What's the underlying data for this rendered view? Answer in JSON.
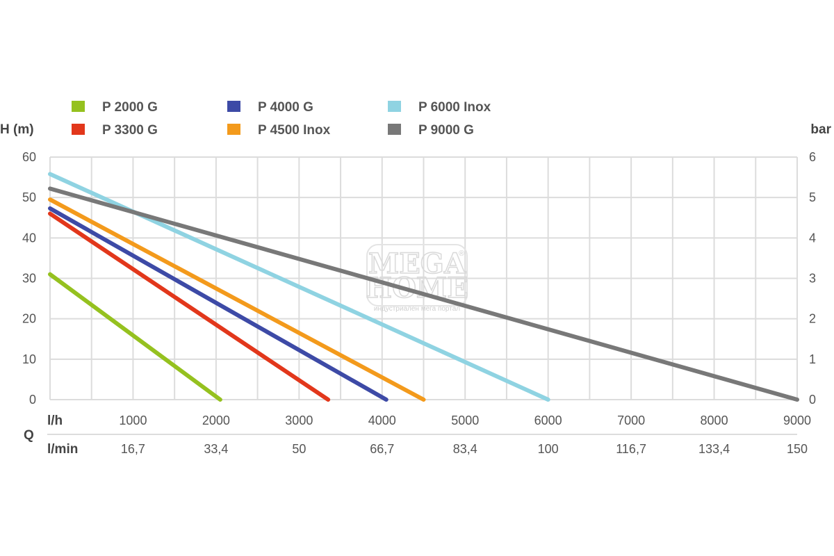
{
  "chart_data": {
    "type": "line",
    "xlim": [
      0,
      9000
    ],
    "ylim": [
      0,
      60
    ],
    "y2lim": [
      0,
      6
    ],
    "ylabel": "H (m)",
    "y2label": "bar",
    "q_label": "Q",
    "x_unit_label": "l/h",
    "x2_unit_label": "l/min",
    "y_ticks": [
      "0",
      "10",
      "20",
      "30",
      "40",
      "50",
      "60"
    ],
    "y2_ticks": [
      "0",
      "1",
      "2",
      "3",
      "4",
      "5",
      "6"
    ],
    "x_ticks": [
      "1000",
      "2000",
      "3000",
      "4000",
      "5000",
      "6000",
      "7000",
      "8000",
      "9000"
    ],
    "x2_ticks": [
      "16,7",
      "33,4",
      "50",
      "66,7",
      "83,4",
      "100",
      "116,7",
      "133,4",
      "150"
    ],
    "grid": true,
    "legend_position": "top",
    "series": [
      {
        "name": "P 2000 G",
        "color": "#95c11f",
        "x": [
          0,
          2050
        ],
        "y": [
          31,
          0
        ]
      },
      {
        "name": "P 3300 G",
        "color": "#e2371b",
        "x": [
          0,
          3350
        ],
        "y": [
          46,
          0
        ]
      },
      {
        "name": "P 4000 G",
        "color": "#3d4aa6",
        "x": [
          0,
          4050
        ],
        "y": [
          47.3,
          0
        ]
      },
      {
        "name": "P 4500 Inox",
        "color": "#f39a1c",
        "x": [
          0,
          4500
        ],
        "y": [
          49.5,
          0
        ]
      },
      {
        "name": "P 6000 Inox",
        "color": "#8fd3e2",
        "x": [
          0,
          6000
        ],
        "y": [
          55.8,
          0
        ]
      },
      {
        "name": "P 9000 G",
        "color": "#787878",
        "x": [
          0,
          9000
        ],
        "y": [
          52.2,
          0
        ]
      }
    ]
  },
  "watermark": {
    "line1": "MEGA",
    "line2": "HOME",
    "registered": "®",
    "tagline": "индустриален мега портал"
  }
}
